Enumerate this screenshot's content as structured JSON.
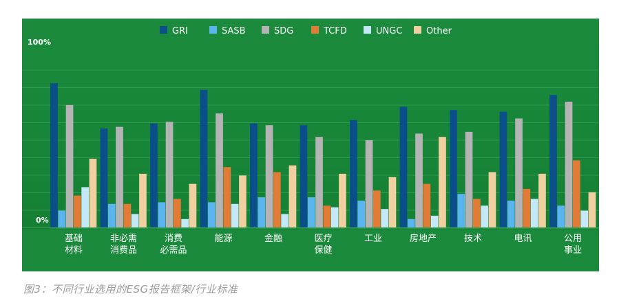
{
  "caption": "图3：不同行业选用的ESG报告框架/行业标准",
  "chart_data": {
    "type": "bar",
    "ylim": [
      0,
      100
    ],
    "y_tick_labels": [
      "100%",
      "0%"
    ],
    "grid": true,
    "legend_position": "top",
    "categories": [
      [
        "基础",
        "材料"
      ],
      [
        "非必需",
        "消费品"
      ],
      [
        "消费",
        "必需品"
      ],
      [
        "能源"
      ],
      [
        "金融"
      ],
      [
        "医疗",
        "保健"
      ],
      [
        "工业"
      ],
      [
        "房地产"
      ],
      [
        "技术"
      ],
      [
        "电讯"
      ],
      [
        "公用",
        "事业"
      ]
    ],
    "series": [
      {
        "name": "GRI",
        "color": "#0b4f8a",
        "values": [
          86,
          59,
          62,
          82,
          62,
          61,
          64,
          72,
          70,
          69,
          79
        ]
      },
      {
        "name": "SASB",
        "color": "#5ab4ee",
        "values": [
          10,
          14,
          15,
          15,
          18,
          18,
          16,
          5,
          20,
          16,
          13
        ]
      },
      {
        "name": "SDG",
        "color": "#b4b4b4",
        "values": [
          73,
          60,
          63,
          68,
          61,
          54,
          52,
          56,
          57,
          65,
          75
        ]
      },
      {
        "name": "TCFD",
        "color": "#e27b36",
        "values": [
          19,
          14,
          17,
          36,
          33,
          13,
          22,
          26,
          17,
          23,
          40
        ]
      },
      {
        "name": "UNGC",
        "color": "#c4e8f6",
        "values": [
          24,
          8,
          5,
          14,
          8,
          12,
          11,
          7,
          13,
          17,
          10
        ]
      },
      {
        "name": "Other",
        "color": "#f0cfa0",
        "values": [
          41,
          32,
          26,
          31,
          37,
          32,
          30,
          54,
          33,
          32,
          21
        ]
      }
    ]
  }
}
